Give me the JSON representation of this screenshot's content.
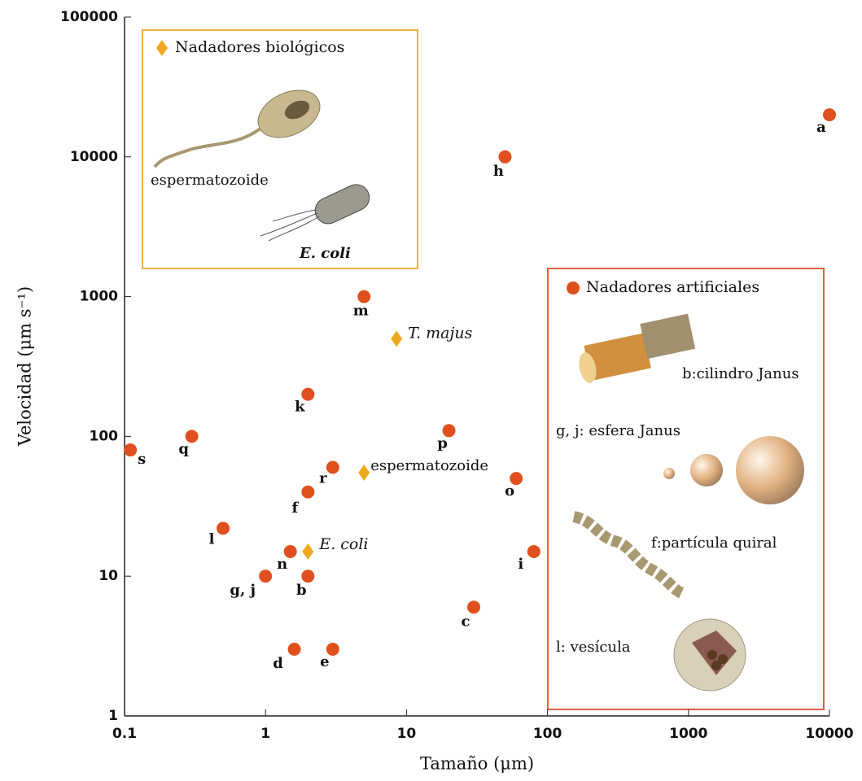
{
  "chart_data": {
    "type": "scatter",
    "xlabel": "Tamaño (μm)",
    "ylabel": "Velocidad (μm s⁻¹)",
    "xscale": "log",
    "yscale": "log",
    "xlim": [
      0.1,
      10000
    ],
    "ylim": [
      1,
      100000
    ],
    "xticks": [
      0.1,
      1,
      10,
      100,
      1000,
      10000
    ],
    "yticks": [
      1,
      10,
      100,
      1000,
      10000,
      100000
    ],
    "series": [
      {
        "name": "Nadadores biológicos",
        "color": "#f0a820",
        "marker": "diamond",
        "x": [
          8.5,
          5,
          2
        ],
        "values": [
          500,
          55,
          15
        ],
        "labels": [
          "T. majus",
          "espermatozoide",
          "E. coli"
        ]
      },
      {
        "name": "Nadadores artificiales",
        "color": "#e0501e",
        "marker": "circle",
        "x": [
          10000,
          50,
          5,
          2,
          0.3,
          0.11,
          20,
          3,
          2,
          60,
          0.5,
          80,
          1.5,
          2,
          1,
          30,
          1.6,
          3
        ],
        "values": [
          20000,
          10000,
          1000,
          200,
          100,
          80,
          110,
          60,
          40,
          50,
          22,
          15,
          15,
          10,
          10,
          6,
          3,
          3
        ],
        "labels": [
          "a",
          "h",
          "m",
          "k",
          "q",
          "s",
          "p",
          "r",
          "f",
          "o",
          "l",
          "i",
          "n",
          "b",
          "g, j",
          "c",
          "d",
          "e"
        ]
      }
    ],
    "annotations": [
      "espermatozoide",
      "E. coli",
      "b:cilindro Janus",
      "g, j: esfera Janus",
      "f:partícula quiral",
      "l: vesícula"
    ]
  }
}
